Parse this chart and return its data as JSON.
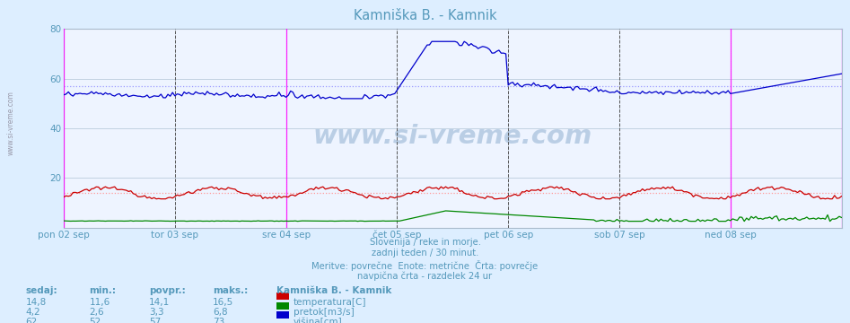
{
  "title": "Kamniška B. - Kamnik",
  "bg_color": "#ddeeff",
  "plot_bg_color": "#eef4ff",
  "grid_color": "#bbccdd",
  "text_color": "#5599bb",
  "avg_line_color_temp": "#ff9999",
  "avg_line_color_height": "#9999ff",
  "x_labels": [
    "pon 02 sep",
    "tor 03 sep",
    "sre 04 sep",
    "čet 05 sep",
    "pet 06 sep",
    "sob 07 sep",
    "ned 08 sep"
  ],
  "x_ticks_idx": [
    0,
    48,
    96,
    144,
    192,
    240,
    288
  ],
  "n_points": 337,
  "ylim": [
    0,
    80
  ],
  "yticks": [
    20,
    40,
    60,
    80
  ],
  "temp_color": "#cc0000",
  "flow_color": "#008800",
  "height_color": "#0000cc",
  "temp_avg": 14.1,
  "flow_avg": 3.3,
  "height_avg": 57,
  "temp_min": 11.6,
  "temp_max": 16.5,
  "flow_min": 2.6,
  "flow_max": 6.8,
  "height_min": 52,
  "height_max": 73,
  "temp_sedaj": 14.8,
  "flow_sedaj": 4.2,
  "height_sedaj": 62,
  "magenta_vlines": [
    0,
    96,
    288,
    336
  ],
  "black_vlines": [
    48,
    144,
    192,
    240
  ],
  "subtitle_lines": [
    "Slovenija / reke in morje.",
    "zadnji teden / 30 minut.",
    "Meritve: povrečne  Enote: metrične  Črta: povrečje",
    "navpična črta - razdelek 24 ur"
  ],
  "legend_title": "Kamniška B. - Kamnik",
  "legend_items": [
    "temperatura[C]",
    "pretok[m3/s]",
    "višina[cm]"
  ],
  "legend_colors": [
    "#cc0000",
    "#008800",
    "#0000cc"
  ],
  "table_headers": [
    "sedaj:",
    "min.:",
    "povpr.:",
    "maks.:"
  ],
  "table_data": [
    [
      "14,8",
      "11,6",
      "14,1",
      "16,5"
    ],
    [
      "4,2",
      "2,6",
      "3,3",
      "6,8"
    ],
    [
      "62",
      "52",
      "57",
      "73"
    ]
  ],
  "watermark": "www.si-vreme.com"
}
